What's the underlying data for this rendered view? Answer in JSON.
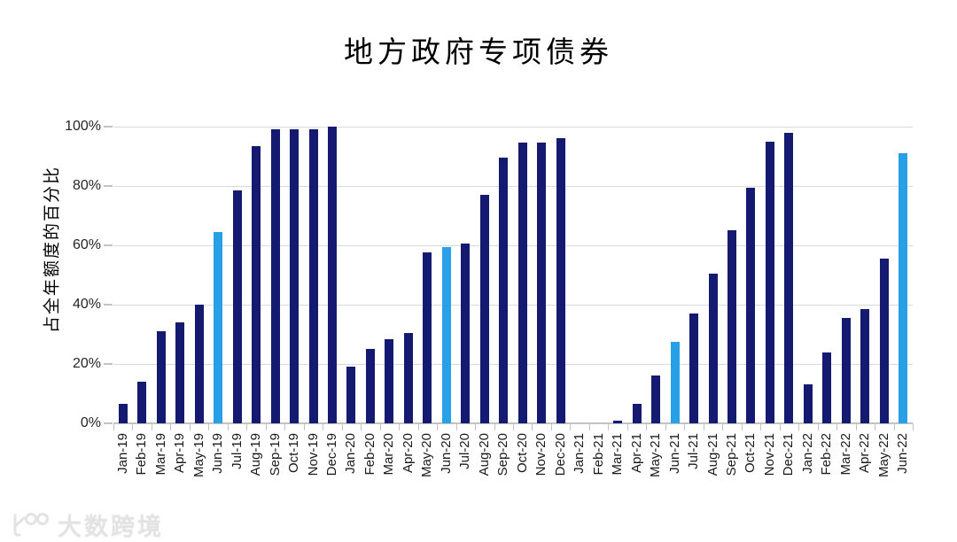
{
  "watermark": {
    "text": "大数跨境"
  },
  "chart_data": {
    "type": "bar",
    "title": "地方政府专项债券",
    "xlabel": "",
    "ylabel": "占全年额度的百分比",
    "ylim": [
      0,
      100
    ],
    "yticks": [
      "0%",
      "20%",
      "40%",
      "60%",
      "80%",
      "100%"
    ],
    "grid": true,
    "legend_position": "none",
    "bar_color": "#131a70",
    "highlight_color": "#28a0e8",
    "highlight_note": "June bars of each year are highlighted light blue",
    "highlight_indices": [
      5,
      17,
      29,
      41
    ],
    "categories": [
      "Jan-19",
      "Feb-19",
      "Mar-19",
      "Apr-19",
      "May-19",
      "Jun-19",
      "Jul-19",
      "Aug-19",
      "Sep-19",
      "Oct-19",
      "Nov-19",
      "Dec-19",
      "Jan-20",
      "Feb-20",
      "Mar-20",
      "Apr-20",
      "May-20",
      "Jun-20",
      "Jul-20",
      "Aug-20",
      "Sep-20",
      "Oct-20",
      "Nov-20",
      "Dec-20",
      "Jan-21",
      "Feb-21",
      "Mar-21",
      "Apr-21",
      "May-21",
      "Jun-21",
      "Jul-21",
      "Aug-21",
      "Sep-21",
      "Oct-21",
      "Nov-21",
      "Dec-21",
      "Jan-22",
      "Feb-22",
      "Mar-22",
      "Apr-22",
      "May-22",
      "Jun-22"
    ],
    "values": [
      6.5,
      14,
      31,
      34,
      40,
      64.5,
      78.5,
      93.5,
      99,
      99,
      99,
      100,
      19,
      25,
      28.5,
      30.5,
      57.5,
      59.5,
      60.5,
      77,
      89.5,
      94.5,
      94.5,
      96,
      0,
      0,
      1,
      6.5,
      16,
      27.5,
      37,
      50.5,
      65,
      79.5,
      95,
      98,
      13,
      24,
      35.5,
      38.5,
      55.5,
      91
    ]
  }
}
